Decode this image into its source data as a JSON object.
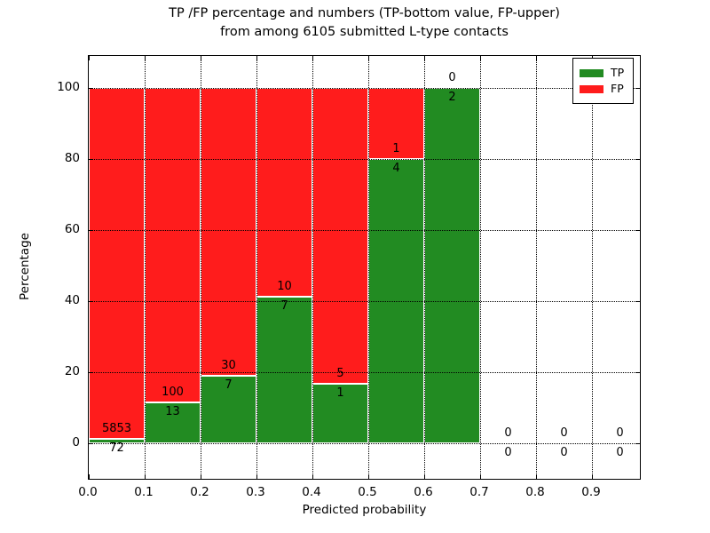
{
  "figure": {
    "background": "#ffffff",
    "axis_color": "#000000"
  },
  "chart_data": {
    "type": "bar",
    "stacked": true,
    "title_line1": "TP /FP percentage and numbers (TP-bottom value, FP-upper)",
    "title_line2": "from among 6105 submitted L-type contacts",
    "xlabel": "Predicted probability",
    "ylabel": "Percentage",
    "total_contacts": 6105,
    "x_tick_labels": [
      "0.0",
      "0.1",
      "0.2",
      "0.3",
      "0.4",
      "0.5",
      "0.6",
      "0.7",
      "0.8",
      "0.9"
    ],
    "y_tick_values": [
      0,
      20,
      40,
      60,
      80,
      100
    ],
    "y_tick_labels": [
      "0",
      "20",
      "40",
      "60",
      "80",
      "100"
    ],
    "xlim": [
      0.0,
      0.99
    ],
    "ylim": [
      -10.5,
      109
    ],
    "grid": true,
    "grid_style": "dotted",
    "legend_position": "upper right",
    "series_meta": [
      {
        "name": "TP",
        "color": "#228b22",
        "position": "bottom"
      },
      {
        "name": "FP",
        "color": "#ff1c1c",
        "position": "upper"
      }
    ],
    "bins": [
      {
        "range": "0.0-0.1",
        "tp": 72,
        "fp": 5853,
        "tp_pct": 1.22
      },
      {
        "range": "0.1-0.2",
        "tp": 13,
        "fp": 100,
        "tp_pct": 11.5
      },
      {
        "range": "0.2-0.3",
        "tp": 7,
        "fp": 30,
        "tp_pct": 18.92
      },
      {
        "range": "0.3-0.4",
        "tp": 7,
        "fp": 10,
        "tp_pct": 41.18
      },
      {
        "range": "0.4-0.5",
        "tp": 1,
        "fp": 5,
        "tp_pct": 16.67
      },
      {
        "range": "0.5-0.6",
        "tp": 4,
        "fp": 1,
        "tp_pct": 80.0
      },
      {
        "range": "0.6-0.7",
        "tp": 2,
        "fp": 0,
        "tp_pct": 100.0
      },
      {
        "range": "0.7-0.8",
        "tp": 0,
        "fp": 0,
        "tp_pct": null
      },
      {
        "range": "0.8-0.9",
        "tp": 0,
        "fp": 0,
        "tp_pct": null
      },
      {
        "range": "0.9-1.0",
        "tp": 0,
        "fp": 0,
        "tp_pct": null
      }
    ]
  },
  "legend": {
    "items": [
      {
        "label": "TP",
        "color": "#228b22"
      },
      {
        "label": "FP",
        "color": "#ff1c1c"
      }
    ]
  }
}
